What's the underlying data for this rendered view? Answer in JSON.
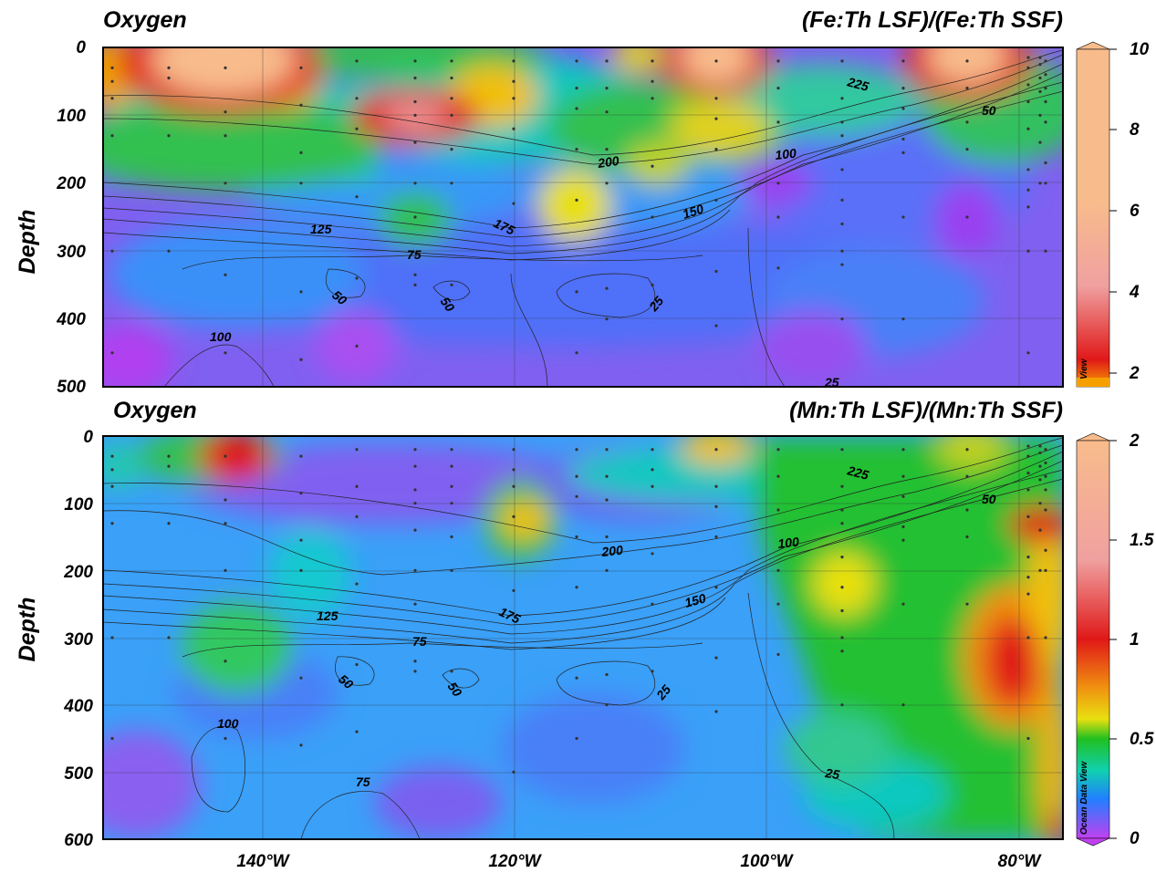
{
  "chart_data": [
    {
      "type": "heatmap",
      "title_left": "Oxygen",
      "title_right": "(Fe:Th LSF)/(Fe:Th SSF)",
      "ylabel": "Depth",
      "xlabel": "",
      "x_range_deg_lon": [
        -153,
        -76
      ],
      "y_range_depth": [
        0,
        500
      ],
      "y_ticks": [
        "0",
        "100",
        "200",
        "300",
        "400",
        "500"
      ],
      "x_ticks": [],
      "grid": true,
      "colorbar": {
        "min": 0,
        "max": 10,
        "ticks": [
          "10",
          "8",
          "6",
          "4",
          "2"
        ],
        "colors": [
          "#f6a000",
          "#e01818",
          "#f0a0a0",
          "#f8bc8c"
        ],
        "watermark": "View"
      },
      "contour_labels": [
        "225",
        "50",
        "100",
        "200",
        "150",
        "175",
        "125",
        "75",
        "50",
        "50",
        "25",
        "100",
        "25"
      ],
      "hotspots": [
        {
          "lon": -143,
          "depth": 30,
          "value": 9
        },
        {
          "lon": -130,
          "depth": 100,
          "value": 3
        },
        {
          "lon": -103,
          "depth": 20,
          "value": 9
        },
        {
          "lon": -84,
          "depth": 25,
          "value": 9
        },
        {
          "lon": -115,
          "depth": 225,
          "value": 1.5
        }
      ]
    },
    {
      "type": "heatmap",
      "title_left": "Oxygen",
      "title_right": "(Mn:Th LSF)/(Mn:Th SSF)",
      "ylabel": "Depth",
      "xlabel": "",
      "x_range_deg_lon": [
        -153,
        -76
      ],
      "y_range_depth": [
        0,
        600
      ],
      "y_ticks": [
        "0",
        "100",
        "200",
        "300",
        "400",
        "500",
        "600"
      ],
      "x_ticks": [
        "140°W",
        "120°W",
        "100°W",
        "80°W"
      ],
      "grid": true,
      "colorbar": {
        "min": 0,
        "max": 2,
        "ticks": [
          "2",
          "1.5",
          "1",
          "0.5",
          "0"
        ],
        "colors": [
          "#c040f0",
          "#2080ff",
          "#10d0b0",
          "#20c020",
          "#e8e010",
          "#f09010",
          "#e01818",
          "#f8bc8c"
        ],
        "watermark": "Ocean Data View"
      },
      "contour_labels": [
        "225",
        "50",
        "100",
        "200",
        "150",
        "175",
        "125",
        "75",
        "50",
        "50",
        "25",
        "100",
        "75",
        "25"
      ],
      "hotspots": [
        {
          "lon": -143,
          "depth": 25,
          "value": 1.3
        },
        {
          "lon": -120,
          "depth": 120,
          "value": 0.7
        },
        {
          "lon": -104,
          "depth": 20,
          "value": 0.7
        },
        {
          "lon": -78,
          "depth": 130,
          "value": 1.0
        },
        {
          "lon": -80,
          "depth": 320,
          "value": 1.0
        }
      ]
    }
  ]
}
